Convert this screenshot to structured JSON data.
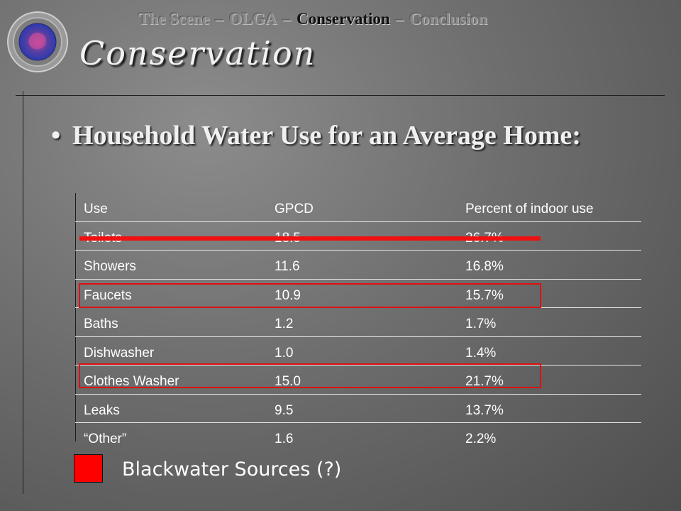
{
  "nav": {
    "items": [
      {
        "label": "The Scene",
        "active": false
      },
      {
        "label": "OLGA",
        "active": false
      },
      {
        "label": "Conservation",
        "active": true
      },
      {
        "label": "Conclusion",
        "active": false
      }
    ],
    "separator": "–"
  },
  "logo": {
    "icon": "water-drop-globe-icon",
    "colors": [
      "#5a3fa0",
      "#c94d9c",
      "#2a3ab0"
    ]
  },
  "title": "Conservation",
  "bullet": {
    "symbol": "•",
    "text": "Household Water Use for an Average Home:"
  },
  "table": {
    "headers": [
      "Use",
      "GPCD",
      "Percent of indoor use"
    ],
    "rows": [
      [
        "Toilets",
        "18.5",
        "26.7%"
      ],
      [
        "Showers",
        "11.6",
        "16.8%"
      ],
      [
        "Faucets",
        "10.9",
        "15.7%"
      ],
      [
        "Baths",
        "1.2",
        "1.7%"
      ],
      [
        "Dishwasher",
        "1.0",
        "1.4%"
      ],
      [
        "Clothes Washer",
        "15.0",
        "21.7%"
      ],
      [
        "Leaks",
        "9.5",
        "13.7%"
      ],
      [
        "“Other”",
        "1.6",
        "2.2%"
      ]
    ],
    "struck_row": "Toilets",
    "boxed_rows": [
      "Faucets",
      "Clothes Washer"
    ]
  },
  "legend": {
    "label": "Blackwater Sources (?)",
    "color": "#ff0000"
  }
}
